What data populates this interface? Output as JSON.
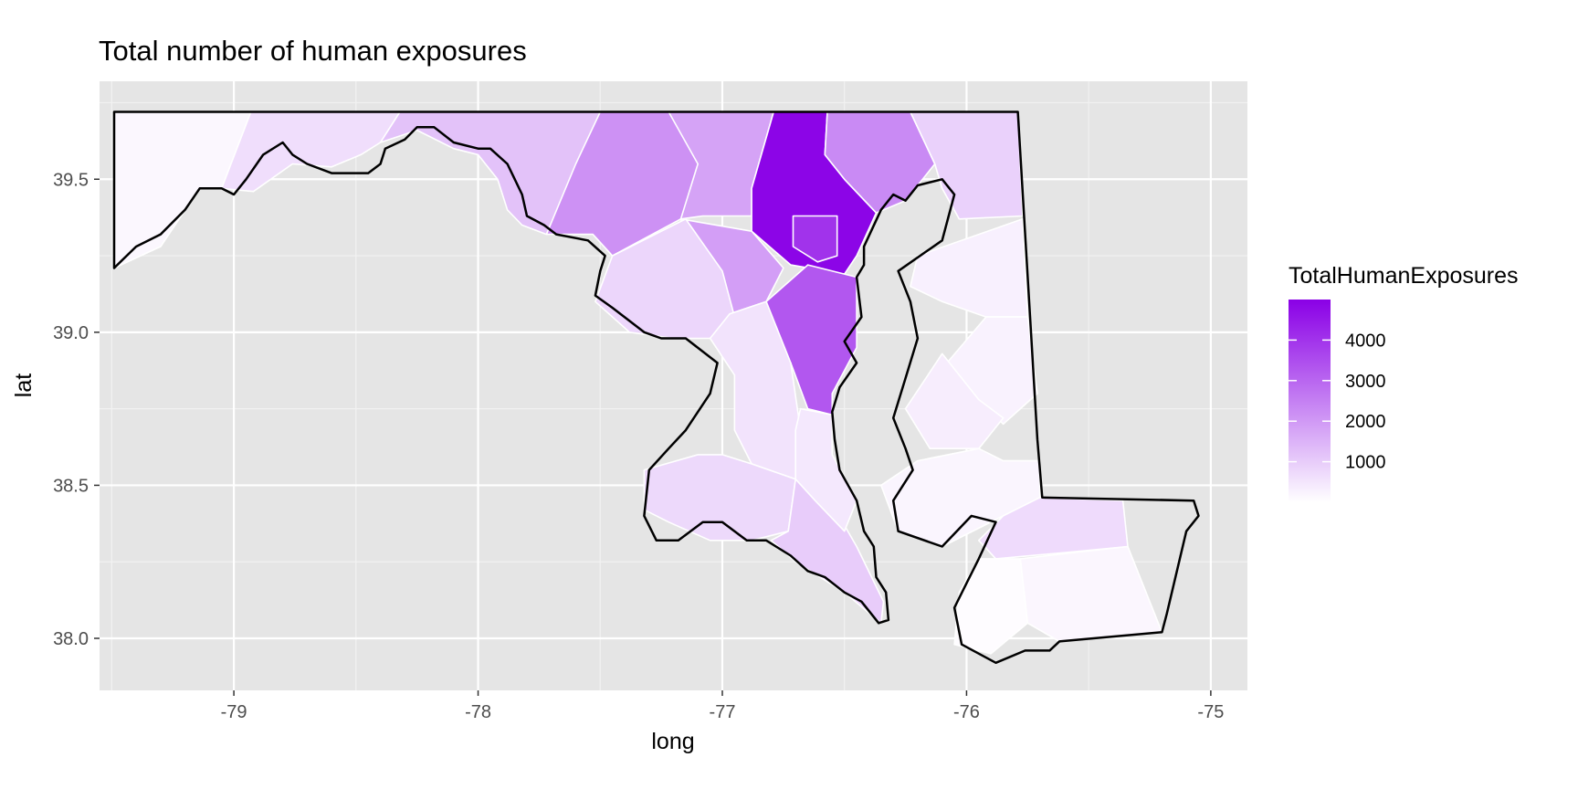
{
  "title": "Total number of human exposures",
  "chart_data": {
    "type": "choropleth",
    "title": "Total number of human exposures",
    "xlabel": "long",
    "ylabel": "lat",
    "xlim": [
      -79.55,
      -74.85
    ],
    "ylim": [
      37.83,
      39.82
    ],
    "x_ticks": [
      -79,
      -78,
      -77,
      -76,
      -75
    ],
    "y_ticks": [
      38.0,
      38.5,
      39.0,
      39.5
    ],
    "x_tick_labels": [
      "-79",
      "-78",
      "-77",
      "-76",
      "-75"
    ],
    "y_tick_labels": [
      "38.0",
      "38.5",
      "39.0",
      "39.5"
    ],
    "grid": true,
    "legend": {
      "title": "TotalHumanExposures",
      "position": "right",
      "breaks": [
        1000,
        2000,
        3000,
        4000
      ],
      "labels": [
        "1000",
        "2000",
        "3000",
        "4000"
      ],
      "range": [
        0,
        5000
      ],
      "low_color": "#ffffff",
      "high_color": "#8a00e6"
    },
    "regions": [
      {
        "id": "r01",
        "value": 150,
        "poly": [
          [
            -79.49,
            39.72
          ],
          [
            -78.93,
            39.72
          ],
          [
            -79.05,
            39.47
          ],
          [
            -79.14,
            39.47
          ],
          [
            -79.3,
            39.28
          ],
          [
            -79.49,
            39.21
          ]
        ]
      },
      {
        "id": "r02",
        "value": 650,
        "poly": [
          [
            -78.93,
            39.72
          ],
          [
            -78.32,
            39.72
          ],
          [
            -78.4,
            39.62
          ],
          [
            -78.48,
            39.58
          ],
          [
            -78.6,
            39.54
          ],
          [
            -78.76,
            39.55
          ],
          [
            -78.92,
            39.46
          ],
          [
            -79.05,
            39.47
          ]
        ]
      },
      {
        "id": "r03",
        "value": 1200,
        "poly": [
          [
            -78.32,
            39.72
          ],
          [
            -77.5,
            39.72
          ],
          [
            -77.55,
            39.62
          ],
          [
            -77.72,
            39.32
          ],
          [
            -77.82,
            39.35
          ],
          [
            -77.88,
            39.4
          ],
          [
            -77.92,
            39.5
          ],
          [
            -78.0,
            39.58
          ],
          [
            -78.1,
            39.6
          ],
          [
            -78.25,
            39.66
          ],
          [
            -78.4,
            39.62
          ]
        ]
      },
      {
        "id": "r04",
        "value": 2150,
        "poly": [
          [
            -77.5,
            39.72
          ],
          [
            -77.22,
            39.72
          ],
          [
            -77.1,
            39.6
          ],
          [
            -77.08,
            39.42
          ],
          [
            -77.17,
            39.37
          ],
          [
            -77.45,
            39.25
          ],
          [
            -77.53,
            39.32
          ],
          [
            -77.72,
            39.32
          ],
          [
            -77.6,
            39.55
          ]
        ]
      },
      {
        "id": "r05",
        "value": 1800,
        "poly": [
          [
            -77.22,
            39.72
          ],
          [
            -76.79,
            39.72
          ],
          [
            -76.88,
            39.47
          ],
          [
            -76.88,
            39.38
          ],
          [
            -77.08,
            39.38
          ],
          [
            -77.17,
            39.37
          ],
          [
            -77.1,
            39.55
          ]
        ]
      },
      {
        "id": "r06",
        "value": 4900,
        "poly": [
          [
            -76.79,
            39.72
          ],
          [
            -76.57,
            39.72
          ],
          [
            -76.58,
            39.58
          ],
          [
            -76.5,
            39.5
          ],
          [
            -76.37,
            39.39
          ],
          [
            -76.45,
            39.25
          ],
          [
            -76.5,
            39.19
          ],
          [
            -76.72,
            39.22
          ],
          [
            -76.88,
            39.33
          ],
          [
            -76.88,
            39.47
          ]
        ]
      },
      {
        "id": "r07",
        "value": 4000,
        "poly": [
          [
            -76.71,
            39.38
          ],
          [
            -76.53,
            39.38
          ],
          [
            -76.53,
            39.25
          ],
          [
            -76.61,
            39.23
          ],
          [
            -76.71,
            39.28
          ]
        ]
      },
      {
        "id": "r08",
        "value": 2300,
        "poly": [
          [
            -76.57,
            39.72
          ],
          [
            -76.23,
            39.72
          ],
          [
            -76.13,
            39.55
          ],
          [
            -76.25,
            39.43
          ],
          [
            -76.37,
            39.39
          ],
          [
            -76.5,
            39.5
          ],
          [
            -76.58,
            39.58
          ]
        ]
      },
      {
        "id": "r09",
        "value": 900,
        "poly": [
          [
            -76.23,
            39.72
          ],
          [
            -75.79,
            39.72
          ],
          [
            -75.77,
            39.38
          ],
          [
            -76.03,
            39.37
          ],
          [
            -76.1,
            39.47
          ],
          [
            -76.13,
            39.55
          ]
        ]
      },
      {
        "id": "r10",
        "value": 1900,
        "poly": [
          [
            -77.17,
            39.37
          ],
          [
            -76.88,
            39.33
          ],
          [
            -76.75,
            39.21
          ],
          [
            -76.82,
            39.1
          ],
          [
            -76.97,
            39.06
          ],
          [
            -77.1,
            39.2
          ]
        ]
      },
      {
        "id": "r11",
        "value": 3300,
        "poly": [
          [
            -76.82,
            39.1
          ],
          [
            -76.65,
            39.22
          ],
          [
            -76.45,
            39.18
          ],
          [
            -76.45,
            38.95
          ],
          [
            -76.55,
            38.8
          ],
          [
            -76.55,
            38.73
          ],
          [
            -76.65,
            38.75
          ],
          [
            -76.72,
            38.9
          ],
          [
            -76.8,
            39.0
          ]
        ]
      },
      {
        "id": "r12",
        "value": 800,
        "poly": [
          [
            -77.45,
            39.25
          ],
          [
            -77.15,
            39.37
          ],
          [
            -77.0,
            39.2
          ],
          [
            -76.95,
            39.05
          ],
          [
            -77.05,
            38.98
          ],
          [
            -77.2,
            38.98
          ],
          [
            -77.38,
            39.0
          ],
          [
            -77.52,
            39.1
          ]
        ]
      },
      {
        "id": "r13",
        "value": 550,
        "poly": [
          [
            -76.97,
            39.06
          ],
          [
            -76.82,
            39.1
          ],
          [
            -76.72,
            38.9
          ],
          [
            -76.68,
            38.68
          ],
          [
            -76.7,
            38.52
          ],
          [
            -76.88,
            38.57
          ],
          [
            -76.95,
            38.68
          ],
          [
            -76.95,
            38.86
          ],
          [
            -77.05,
            38.98
          ]
        ]
      },
      {
        "id": "r14",
        "value": 750,
        "poly": [
          [
            -77.0,
            38.6
          ],
          [
            -76.88,
            38.57
          ],
          [
            -76.7,
            38.52
          ],
          [
            -76.73,
            38.35
          ],
          [
            -76.88,
            38.32
          ],
          [
            -77.05,
            38.32
          ],
          [
            -77.22,
            38.38
          ],
          [
            -77.32,
            38.42
          ],
          [
            -77.32,
            38.55
          ],
          [
            -77.1,
            38.6
          ]
        ]
      },
      {
        "id": "r15",
        "value": 1000,
        "poly": [
          [
            -76.7,
            38.52
          ],
          [
            -76.58,
            38.48
          ],
          [
            -76.45,
            38.3
          ],
          [
            -76.34,
            38.12
          ],
          [
            -76.35,
            38.05
          ],
          [
            -76.5,
            38.15
          ],
          [
            -76.7,
            38.25
          ],
          [
            -76.8,
            38.32
          ],
          [
            -76.73,
            38.35
          ]
        ]
      },
      {
        "id": "r16",
        "value": 450,
        "poly": [
          [
            -76.68,
            38.75
          ],
          [
            -76.55,
            38.73
          ],
          [
            -76.55,
            38.6
          ],
          [
            -76.45,
            38.45
          ],
          [
            -76.5,
            38.35
          ],
          [
            -76.62,
            38.45
          ],
          [
            -76.7,
            38.52
          ],
          [
            -76.7,
            38.68
          ]
        ]
      },
      {
        "id": "r17",
        "value": 300,
        "poly": [
          [
            -76.2,
            39.25
          ],
          [
            -75.77,
            39.37
          ],
          [
            -75.75,
            39.05
          ],
          [
            -75.92,
            39.05
          ],
          [
            -76.1,
            39.1
          ],
          [
            -76.23,
            39.15
          ]
        ]
      },
      {
        "id": "r18",
        "value": 250,
        "poly": [
          [
            -75.92,
            39.05
          ],
          [
            -75.75,
            39.05
          ],
          [
            -75.71,
            38.8
          ],
          [
            -75.85,
            38.7
          ],
          [
            -75.95,
            38.78
          ],
          [
            -76.08,
            38.9
          ]
        ]
      },
      {
        "id": "r19",
        "value": 350,
        "poly": [
          [
            -76.1,
            38.93
          ],
          [
            -75.95,
            38.78
          ],
          [
            -75.85,
            38.72
          ],
          [
            -75.95,
            38.62
          ],
          [
            -76.15,
            38.62
          ],
          [
            -76.25,
            38.75
          ]
        ]
      },
      {
        "id": "r20",
        "value": 200,
        "poly": [
          [
            -75.95,
            38.62
          ],
          [
            -75.85,
            38.58
          ],
          [
            -75.7,
            38.58
          ],
          [
            -75.7,
            38.46
          ],
          [
            -75.85,
            38.4
          ],
          [
            -76.1,
            38.3
          ],
          [
            -76.28,
            38.35
          ],
          [
            -76.35,
            38.5
          ],
          [
            -76.2,
            38.58
          ]
        ]
      },
      {
        "id": "r21",
        "value": 700,
        "poly": [
          [
            -75.85,
            38.4
          ],
          [
            -75.7,
            38.46
          ],
          [
            -75.36,
            38.45
          ],
          [
            -75.34,
            38.3
          ],
          [
            -75.6,
            38.28
          ],
          [
            -75.88,
            38.26
          ],
          [
            -75.95,
            38.32
          ]
        ]
      },
      {
        "id": "r22",
        "value": 50,
        "poly": [
          [
            -75.95,
            38.26
          ],
          [
            -75.78,
            38.26
          ],
          [
            -75.75,
            38.05
          ],
          [
            -75.9,
            37.95
          ],
          [
            -76.05,
            37.98
          ],
          [
            -76.03,
            38.15
          ]
        ]
      },
      {
        "id": "r23",
        "value": 180,
        "poly": [
          [
            -75.78,
            38.26
          ],
          [
            -75.34,
            38.3
          ],
          [
            -75.2,
            38.02
          ],
          [
            -75.62,
            37.99
          ],
          [
            -75.75,
            38.05
          ]
        ]
      }
    ],
    "outline": [
      [
        -79.49,
        39.72
      ],
      [
        -79.4,
        39.72
      ],
      [
        -78.4,
        39.72
      ],
      [
        -77.5,
        39.72
      ],
      [
        -76.79,
        39.72
      ],
      [
        -76.23,
        39.72
      ],
      [
        -75.79,
        39.72
      ],
      [
        -75.71,
        38.65
      ],
      [
        -75.69,
        38.46
      ],
      [
        -75.07,
        38.45
      ],
      [
        -75.05,
        38.4
      ],
      [
        -75.1,
        38.35
      ],
      [
        -75.18,
        38.08
      ],
      [
        -75.2,
        38.02
      ],
      [
        -75.62,
        37.99
      ],
      [
        -75.66,
        37.96
      ],
      [
        -75.76,
        37.96
      ],
      [
        -75.88,
        37.92
      ],
      [
        -76.02,
        37.98
      ],
      [
        -76.05,
        38.1
      ],
      [
        -76.0,
        38.18
      ],
      [
        -75.95,
        38.26
      ],
      [
        -75.88,
        38.38
      ],
      [
        -75.98,
        38.4
      ],
      [
        -76.1,
        38.3
      ],
      [
        -76.28,
        38.35
      ],
      [
        -76.3,
        38.45
      ],
      [
        -76.22,
        38.55
      ],
      [
        -76.25,
        38.62
      ],
      [
        -76.3,
        38.72
      ],
      [
        -76.25,
        38.85
      ],
      [
        -76.2,
        38.98
      ],
      [
        -76.23,
        39.1
      ],
      [
        -76.28,
        39.2
      ],
      [
        -76.1,
        39.3
      ],
      [
        -76.05,
        39.45
      ],
      [
        -76.1,
        39.5
      ],
      [
        -76.2,
        39.48
      ],
      [
        -76.25,
        39.43
      ],
      [
        -76.3,
        39.45
      ],
      [
        -76.35,
        39.4
      ],
      [
        -76.42,
        39.28
      ],
      [
        -76.42,
        39.22
      ],
      [
        -76.45,
        39.18
      ],
      [
        -76.43,
        39.05
      ],
      [
        -76.5,
        38.97
      ],
      [
        -76.45,
        38.9
      ],
      [
        -76.52,
        38.82
      ],
      [
        -76.55,
        38.74
      ],
      [
        -76.54,
        38.65
      ],
      [
        -76.52,
        38.55
      ],
      [
        -76.45,
        38.45
      ],
      [
        -76.42,
        38.35
      ],
      [
        -76.38,
        38.3
      ],
      [
        -76.37,
        38.2
      ],
      [
        -76.33,
        38.15
      ],
      [
        -76.32,
        38.06
      ],
      [
        -76.36,
        38.05
      ],
      [
        -76.43,
        38.12
      ],
      [
        -76.5,
        38.15
      ],
      [
        -76.58,
        38.2
      ],
      [
        -76.65,
        38.22
      ],
      [
        -76.72,
        38.27
      ],
      [
        -76.78,
        38.3
      ],
      [
        -76.82,
        38.32
      ],
      [
        -76.9,
        38.32
      ],
      [
        -77.0,
        38.38
      ],
      [
        -77.08,
        38.38
      ],
      [
        -77.18,
        38.32
      ],
      [
        -77.27,
        38.32
      ],
      [
        -77.32,
        38.4
      ],
      [
        -77.3,
        38.55
      ],
      [
        -77.22,
        38.62
      ],
      [
        -77.15,
        38.68
      ],
      [
        -77.05,
        38.8
      ],
      [
        -77.02,
        38.9
      ],
      [
        -77.15,
        38.98
      ],
      [
        -77.25,
        38.98
      ],
      [
        -77.32,
        39.0
      ],
      [
        -77.45,
        39.08
      ],
      [
        -77.52,
        39.12
      ],
      [
        -77.5,
        39.2
      ],
      [
        -77.48,
        39.25
      ],
      [
        -77.55,
        39.3
      ],
      [
        -77.68,
        39.32
      ],
      [
        -77.73,
        39.35
      ],
      [
        -77.8,
        39.38
      ],
      [
        -77.82,
        39.45
      ],
      [
        -77.85,
        39.5
      ],
      [
        -77.88,
        39.55
      ],
      [
        -77.95,
        39.6
      ],
      [
        -78.0,
        39.6
      ],
      [
        -78.1,
        39.62
      ],
      [
        -78.18,
        39.67
      ],
      [
        -78.25,
        39.67
      ],
      [
        -78.3,
        39.63
      ],
      [
        -78.38,
        39.6
      ],
      [
        -78.4,
        39.55
      ],
      [
        -78.45,
        39.52
      ],
      [
        -78.6,
        39.52
      ],
      [
        -78.7,
        39.55
      ],
      [
        -78.76,
        39.58
      ],
      [
        -78.8,
        39.62
      ],
      [
        -78.88,
        39.58
      ],
      [
        -78.95,
        39.5
      ],
      [
        -79.0,
        39.45
      ],
      [
        -79.05,
        39.47
      ],
      [
        -79.14,
        39.47
      ],
      [
        -79.2,
        39.4
      ],
      [
        -79.3,
        39.32
      ],
      [
        -79.4,
        39.28
      ],
      [
        -79.49,
        39.21
      ],
      [
        -79.49,
        39.72
      ]
    ]
  }
}
